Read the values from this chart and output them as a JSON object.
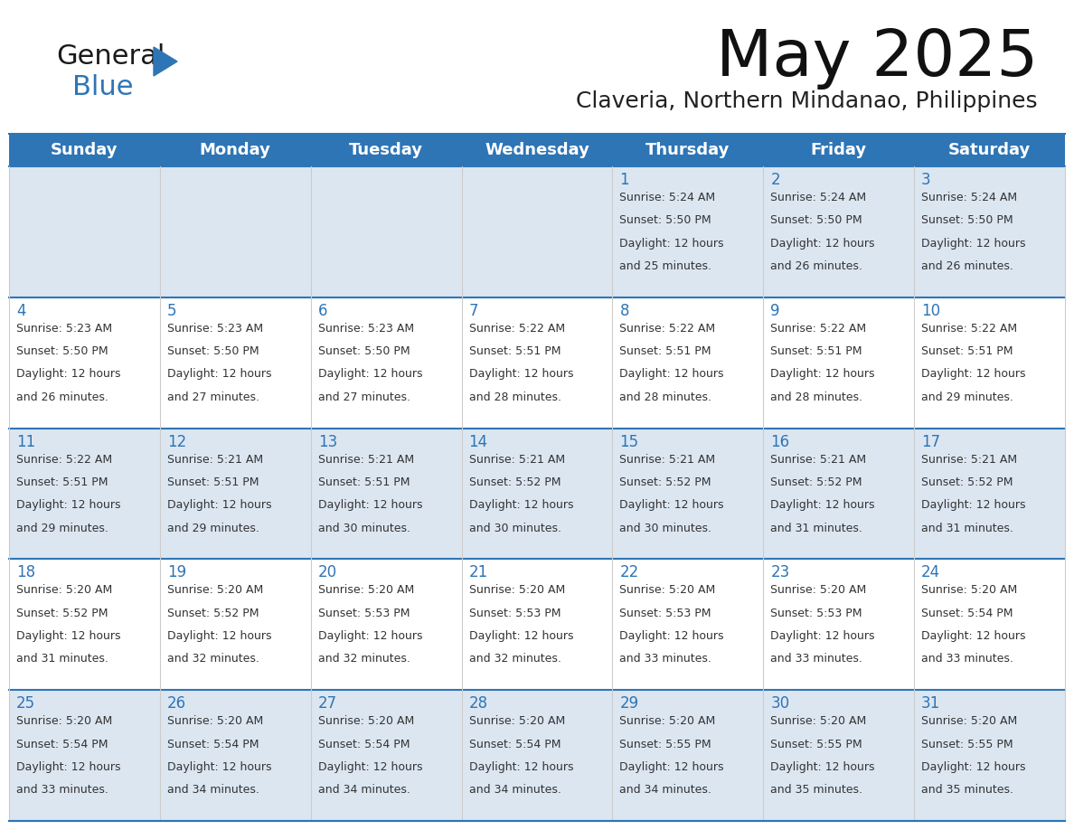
{
  "title": "May 2025",
  "subtitle": "Claveria, Northern Mindanao, Philippines",
  "header_color": "#2E75B6",
  "header_text_color": "#FFFFFF",
  "cell_bg_light": "#DCE6F1",
  "cell_bg_white": "#FFFFFF",
  "day_number_color": "#2E75B6",
  "text_color": "#333333",
  "day_headers": [
    "Sunday",
    "Monday",
    "Tuesday",
    "Wednesday",
    "Thursday",
    "Friday",
    "Saturday"
  ],
  "days": [
    {
      "day": 1,
      "col": 4,
      "row": 0,
      "sunrise": "5:24 AM",
      "sunset": "5:50 PM",
      "daylight": "12 hours and 25 minutes."
    },
    {
      "day": 2,
      "col": 5,
      "row": 0,
      "sunrise": "5:24 AM",
      "sunset": "5:50 PM",
      "daylight": "12 hours and 26 minutes."
    },
    {
      "day": 3,
      "col": 6,
      "row": 0,
      "sunrise": "5:24 AM",
      "sunset": "5:50 PM",
      "daylight": "12 hours and 26 minutes."
    },
    {
      "day": 4,
      "col": 0,
      "row": 1,
      "sunrise": "5:23 AM",
      "sunset": "5:50 PM",
      "daylight": "12 hours and 26 minutes."
    },
    {
      "day": 5,
      "col": 1,
      "row": 1,
      "sunrise": "5:23 AM",
      "sunset": "5:50 PM",
      "daylight": "12 hours and 27 minutes."
    },
    {
      "day": 6,
      "col": 2,
      "row": 1,
      "sunrise": "5:23 AM",
      "sunset": "5:50 PM",
      "daylight": "12 hours and 27 minutes."
    },
    {
      "day": 7,
      "col": 3,
      "row": 1,
      "sunrise": "5:22 AM",
      "sunset": "5:51 PM",
      "daylight": "12 hours and 28 minutes."
    },
    {
      "day": 8,
      "col": 4,
      "row": 1,
      "sunrise": "5:22 AM",
      "sunset": "5:51 PM",
      "daylight": "12 hours and 28 minutes."
    },
    {
      "day": 9,
      "col": 5,
      "row": 1,
      "sunrise": "5:22 AM",
      "sunset": "5:51 PM",
      "daylight": "12 hours and 28 minutes."
    },
    {
      "day": 10,
      "col": 6,
      "row": 1,
      "sunrise": "5:22 AM",
      "sunset": "5:51 PM",
      "daylight": "12 hours and 29 minutes."
    },
    {
      "day": 11,
      "col": 0,
      "row": 2,
      "sunrise": "5:22 AM",
      "sunset": "5:51 PM",
      "daylight": "12 hours and 29 minutes."
    },
    {
      "day": 12,
      "col": 1,
      "row": 2,
      "sunrise": "5:21 AM",
      "sunset": "5:51 PM",
      "daylight": "12 hours and 29 minutes."
    },
    {
      "day": 13,
      "col": 2,
      "row": 2,
      "sunrise": "5:21 AM",
      "sunset": "5:51 PM",
      "daylight": "12 hours and 30 minutes."
    },
    {
      "day": 14,
      "col": 3,
      "row": 2,
      "sunrise": "5:21 AM",
      "sunset": "5:52 PM",
      "daylight": "12 hours and 30 minutes."
    },
    {
      "day": 15,
      "col": 4,
      "row": 2,
      "sunrise": "5:21 AM",
      "sunset": "5:52 PM",
      "daylight": "12 hours and 30 minutes."
    },
    {
      "day": 16,
      "col": 5,
      "row": 2,
      "sunrise": "5:21 AM",
      "sunset": "5:52 PM",
      "daylight": "12 hours and 31 minutes."
    },
    {
      "day": 17,
      "col": 6,
      "row": 2,
      "sunrise": "5:21 AM",
      "sunset": "5:52 PM",
      "daylight": "12 hours and 31 minutes."
    },
    {
      "day": 18,
      "col": 0,
      "row": 3,
      "sunrise": "5:20 AM",
      "sunset": "5:52 PM",
      "daylight": "12 hours and 31 minutes."
    },
    {
      "day": 19,
      "col": 1,
      "row": 3,
      "sunrise": "5:20 AM",
      "sunset": "5:52 PM",
      "daylight": "12 hours and 32 minutes."
    },
    {
      "day": 20,
      "col": 2,
      "row": 3,
      "sunrise": "5:20 AM",
      "sunset": "5:53 PM",
      "daylight": "12 hours and 32 minutes."
    },
    {
      "day": 21,
      "col": 3,
      "row": 3,
      "sunrise": "5:20 AM",
      "sunset": "5:53 PM",
      "daylight": "12 hours and 32 minutes."
    },
    {
      "day": 22,
      "col": 4,
      "row": 3,
      "sunrise": "5:20 AM",
      "sunset": "5:53 PM",
      "daylight": "12 hours and 33 minutes."
    },
    {
      "day": 23,
      "col": 5,
      "row": 3,
      "sunrise": "5:20 AM",
      "sunset": "5:53 PM",
      "daylight": "12 hours and 33 minutes."
    },
    {
      "day": 24,
      "col": 6,
      "row": 3,
      "sunrise": "5:20 AM",
      "sunset": "5:54 PM",
      "daylight": "12 hours and 33 minutes."
    },
    {
      "day": 25,
      "col": 0,
      "row": 4,
      "sunrise": "5:20 AM",
      "sunset": "5:54 PM",
      "daylight": "12 hours and 33 minutes."
    },
    {
      "day": 26,
      "col": 1,
      "row": 4,
      "sunrise": "5:20 AM",
      "sunset": "5:54 PM",
      "daylight": "12 hours and 34 minutes."
    },
    {
      "day": 27,
      "col": 2,
      "row": 4,
      "sunrise": "5:20 AM",
      "sunset": "5:54 PM",
      "daylight": "12 hours and 34 minutes."
    },
    {
      "day": 28,
      "col": 3,
      "row": 4,
      "sunrise": "5:20 AM",
      "sunset": "5:54 PM",
      "daylight": "12 hours and 34 minutes."
    },
    {
      "day": 29,
      "col": 4,
      "row": 4,
      "sunrise": "5:20 AM",
      "sunset": "5:55 PM",
      "daylight": "12 hours and 34 minutes."
    },
    {
      "day": 30,
      "col": 5,
      "row": 4,
      "sunrise": "5:20 AM",
      "sunset": "5:55 PM",
      "daylight": "12 hours and 35 minutes."
    },
    {
      "day": 31,
      "col": 6,
      "row": 4,
      "sunrise": "5:20 AM",
      "sunset": "5:55 PM",
      "daylight": "12 hours and 35 minutes."
    }
  ],
  "n_rows": 5,
  "n_cols": 7,
  "logo_general_color": "#1A1A1A",
  "logo_blue_color": "#2E75B6",
  "logo_triangle_color": "#2E75B6"
}
